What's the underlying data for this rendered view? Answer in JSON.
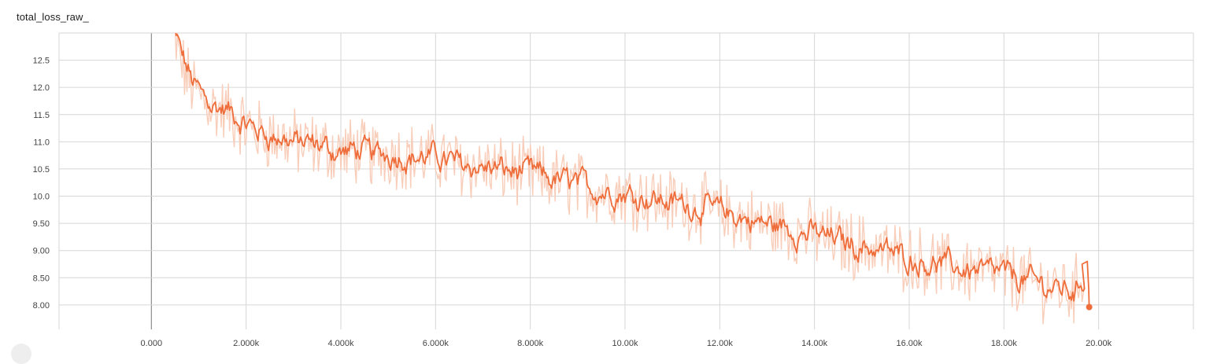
{
  "card": {
    "title": "total_loss_raw_"
  },
  "colors": {
    "smoothed": "#ee6d3a",
    "raw": "#f8cdb9",
    "grid": "#d6d6d6",
    "zero_axis": "#8c8c8c",
    "tick_text": "#444444"
  },
  "chart_data": {
    "type": "line",
    "title": "total_loss_raw_",
    "xlabel": "",
    "ylabel": "",
    "xlim": [
      -1950,
      22000
    ],
    "ylim": [
      7.55,
      13.0
    ],
    "grid": true,
    "x_ticks": [
      0,
      2000,
      4000,
      6000,
      8000,
      10000,
      12000,
      14000,
      16000,
      18000,
      20000
    ],
    "x_tick_labels": [
      "0.000",
      "2.000k",
      "4.000k",
      "6.000k",
      "8.000k",
      "10.00k",
      "12.00k",
      "14.00k",
      "16.00k",
      "18.00k",
      "20.00k"
    ],
    "y_ticks": [
      8.0,
      8.5,
      9.0,
      9.5,
      10.0,
      10.5,
      11.0,
      11.5,
      12.0,
      12.5
    ],
    "y_tick_labels": [
      "8.00",
      "8.50",
      "9.00",
      "9.50",
      "10.0",
      "10.5",
      "11.0",
      "11.5",
      "12.0",
      "12.5"
    ],
    "series": [
      {
        "role": "smoothed",
        "x": [
          450,
          600,
          800,
          1000,
          1200,
          1400,
          1600,
          1800,
          2000,
          2200,
          2500,
          2800,
          3200,
          3600,
          4000,
          4300,
          4600,
          5000,
          5300,
          5600,
          6000,
          6400,
          6800,
          7200,
          7600,
          8000,
          8400,
          8800,
          9200,
          9600,
          10000,
          10400,
          10800,
          11200,
          11600,
          12000,
          12400,
          12800,
          13200,
          13600,
          14000,
          14400,
          14800,
          15200,
          15600,
          16000,
          16400,
          16800,
          17200,
          17600,
          18000,
          18400,
          18800,
          19200,
          19500,
          19700,
          19800
        ],
        "y": [
          13.0,
          12.5,
          12.1,
          11.85,
          11.7,
          11.6,
          11.55,
          11.4,
          11.3,
          11.2,
          11.1,
          11.05,
          10.95,
          10.9,
          10.8,
          10.85,
          10.75,
          10.8,
          10.75,
          10.7,
          10.72,
          10.6,
          10.55,
          10.5,
          10.45,
          10.4,
          10.3,
          10.25,
          10.15,
          10.1,
          10.05,
          10.0,
          9.9,
          9.85,
          9.8,
          9.7,
          9.6,
          9.5,
          9.45,
          9.35,
          9.3,
          9.2,
          9.1,
          9.05,
          8.95,
          8.85,
          8.8,
          8.7,
          8.65,
          8.6,
          8.55,
          8.45,
          8.35,
          8.3,
          8.25,
          8.7,
          7.96
        ]
      }
    ],
    "raw_band_amplitude": 0.55,
    "last_point": [
      19800,
      7.96
    ]
  }
}
